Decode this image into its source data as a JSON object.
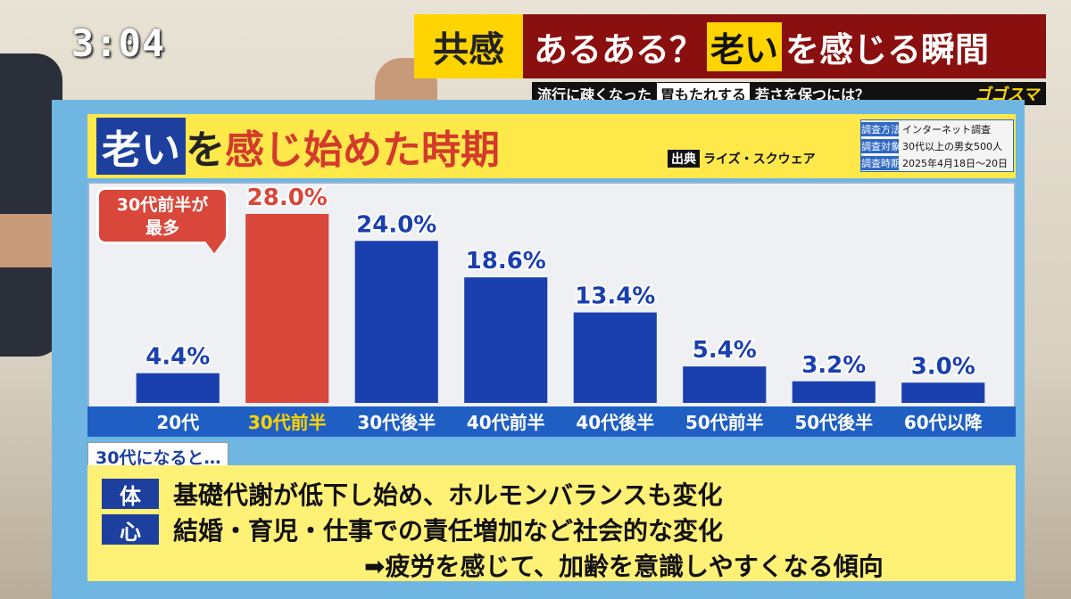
{
  "clock": "3:04",
  "header": {
    "tag": "共感",
    "title_pre": "あるある？",
    "title_hl": "老い",
    "title_post": "を感じる瞬間"
  },
  "subbar": {
    "left": "流行に疎くなった",
    "middle": "胃もたれする",
    "right": "若さを保つには？",
    "logo": "ゴゴスマ"
  },
  "board": {
    "title_part1": "老い",
    "title_part2": "を",
    "title_part3": "感じ始めた時期",
    "source_label": "出典",
    "source_value": "ライズ・スクウェア",
    "meta": [
      {
        "key": "調査方法",
        "value": "インターネット調査"
      },
      {
        "key": "調査対象",
        "value": "30代以上の男女500人"
      },
      {
        "key": "調査時期",
        "value": "2025年4月18日〜20日"
      }
    ],
    "callout": "30代前半が\n最多",
    "section_label": "30代になると…",
    "notes": [
      {
        "tag": "体",
        "text": "基礎代謝が低下し始め、ホルモンバランスも変化"
      },
      {
        "tag": "心",
        "text": "結婚・育児・仕事での責任増加など社会的な変化"
      }
    ],
    "conclusion": "➡疲労を感じて、加齢を意識しやすくなる傾向"
  },
  "colors": {
    "bar_default": "#1a3fae",
    "bar_highlight": "#d8473a",
    "axis_band": "#1f5fc4",
    "label_highlight": "#ffd400"
  },
  "chart_data": {
    "type": "bar",
    "title": "老いを感じ始めた時期",
    "categories": [
      "20代",
      "30代前半",
      "30代後半",
      "40代前半",
      "40代後半",
      "50代前半",
      "50代後半",
      "60代以降"
    ],
    "values": [
      4.4,
      28.0,
      24.0,
      18.6,
      13.4,
      5.4,
      3.2,
      3.0
    ],
    "value_labels": [
      "4.4%",
      "28.0%",
      "24.0%",
      "18.6%",
      "13.4%",
      "5.4%",
      "3.2%",
      "3.0%"
    ],
    "highlight_index": 1,
    "ylim": [
      0,
      28
    ],
    "grid": false,
    "xlabel": "",
    "ylabel": ""
  }
}
